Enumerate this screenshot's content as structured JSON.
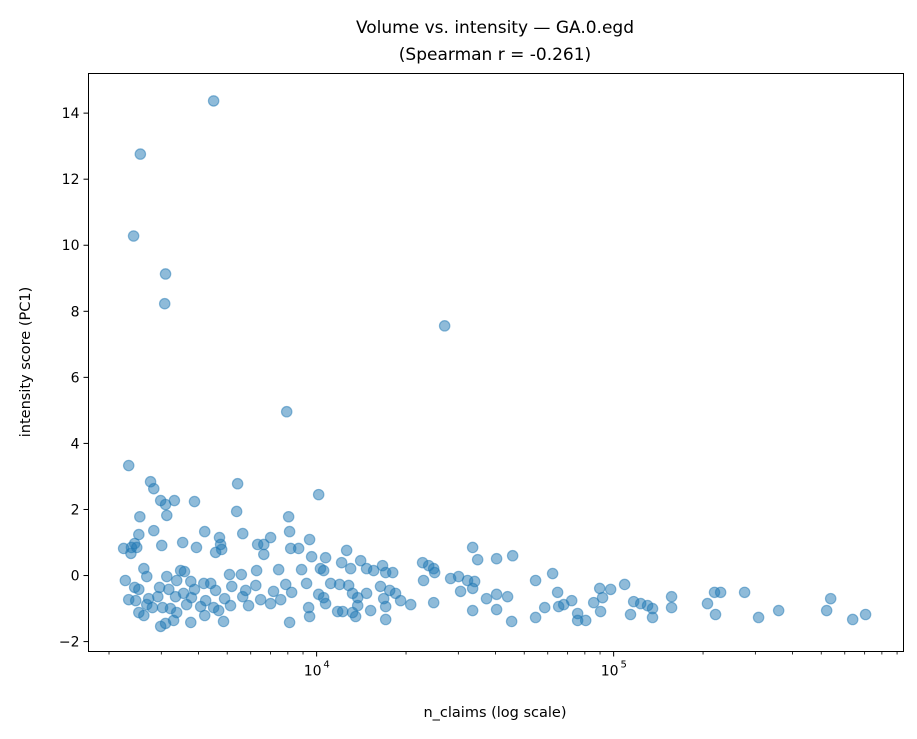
{
  "chart_data": {
    "type": "scatter",
    "title": "Volume vs. intensity — GA.0.egd",
    "subtitle": "(Spearman r = -0.261)",
    "xlabel": "n_claims (log scale)",
    "ylabel": "intensity score (PC1)",
    "xscale": "log",
    "xlim": [
      1706,
      946000
    ],
    "ylim": [
      -2.3,
      15.2
    ],
    "xticks": [
      {
        "value": 10000,
        "base": "10",
        "exp": "4"
      },
      {
        "value": 100000,
        "base": "10",
        "exp": "5"
      }
    ],
    "yticks": [
      -2,
      0,
      2,
      4,
      6,
      8,
      10,
      12,
      14
    ],
    "ytick_labels": [
      "−2",
      "0",
      "2",
      "4",
      "6",
      "8",
      "10",
      "12",
      "14"
    ],
    "grid": false,
    "color": "#1f77b4",
    "alpha": 0.5,
    "points": [
      [
        4500,
        14.37
      ],
      [
        2550,
        12.76
      ],
      [
        2420,
        10.28
      ],
      [
        3100,
        9.13
      ],
      [
        3080,
        8.23
      ],
      [
        26980,
        7.56
      ],
      [
        7930,
        4.96
      ],
      [
        2330,
        3.33
      ],
      [
        2760,
        2.84
      ],
      [
        2830,
        2.63
      ],
      [
        5420,
        2.78
      ],
      [
        10160,
        2.45
      ],
      [
        2985,
        2.27
      ],
      [
        3320,
        2.27
      ],
      [
        3880,
        2.24
      ],
      [
        3100,
        2.15
      ],
      [
        5380,
        1.94
      ],
      [
        2540,
        1.78
      ],
      [
        3130,
        1.82
      ],
      [
        8050,
        1.78
      ],
      [
        4200,
        1.33
      ],
      [
        2830,
        1.36
      ],
      [
        5640,
        1.27
      ],
      [
        8110,
        1.33
      ],
      [
        4710,
        1.15
      ],
      [
        7000,
        1.15
      ],
      [
        9470,
        1.09
      ],
      [
        2520,
        1.24
      ],
      [
        3540,
        1.0
      ],
      [
        2440,
        0.97
      ],
      [
        4750,
        0.94
      ],
      [
        6330,
        0.94
      ],
      [
        6640,
        0.94
      ],
      [
        3010,
        0.91
      ],
      [
        3940,
        0.85
      ],
      [
        4790,
        0.79
      ],
      [
        8700,
        0.82
      ],
      [
        8180,
        0.82
      ],
      [
        12620,
        0.76
      ],
      [
        33520,
        0.85
      ],
      [
        2240,
        0.82
      ],
      [
        2380,
        0.85
      ],
      [
        2480,
        0.85
      ],
      [
        2370,
        0.67
      ],
      [
        4570,
        0.7
      ],
      [
        6640,
        0.64
      ],
      [
        9620,
        0.57
      ],
      [
        10720,
        0.54
      ],
      [
        40360,
        0.51
      ],
      [
        45710,
        0.6
      ],
      [
        34850,
        0.48
      ],
      [
        22740,
        0.39
      ],
      [
        23840,
        0.3
      ],
      [
        12140,
        0.39
      ],
      [
        14070,
        0.45
      ],
      [
        24970,
        0.09
      ],
      [
        16670,
        0.3
      ],
      [
        24780,
        0.21
      ],
      [
        13020,
        0.21
      ],
      [
        14730,
        0.21
      ],
      [
        18040,
        0.09
      ],
      [
        17080,
        0.09
      ],
      [
        15560,
        0.15
      ],
      [
        10300,
        0.21
      ],
      [
        10560,
        0.15
      ],
      [
        8900,
        0.18
      ],
      [
        7450,
        0.18
      ],
      [
        6280,
        0.15
      ],
      [
        5580,
        0.03
      ],
      [
        5090,
        0.03
      ],
      [
        3485,
        0.15
      ],
      [
        3590,
        0.12
      ],
      [
        3130,
        -0.03
      ],
      [
        2620,
        0.21
      ],
      [
        30060,
        -0.03
      ],
      [
        28260,
        -0.09
      ],
      [
        32220,
        -0.15
      ],
      [
        34040,
        -0.18
      ],
      [
        54600,
        -0.15
      ],
      [
        62310,
        0.06
      ],
      [
        108900,
        -0.27
      ],
      [
        2270,
        -0.15
      ],
      [
        2680,
        -0.03
      ],
      [
        3380,
        -0.15
      ],
      [
        3770,
        -0.18
      ],
      [
        4170,
        -0.24
      ],
      [
        4400,
        -0.24
      ],
      [
        5180,
        -0.33
      ],
      [
        6240,
        -0.3
      ],
      [
        7870,
        -0.27
      ],
      [
        9250,
        -0.24
      ],
      [
        11150,
        -0.24
      ],
      [
        11950,
        -0.27
      ],
      [
        12820,
        -0.3
      ],
      [
        16410,
        -0.33
      ],
      [
        17620,
        -0.45
      ],
      [
        22910,
        -0.15
      ],
      [
        89770,
        -0.39
      ],
      [
        97700,
        -0.42
      ],
      [
        2440,
        -0.36
      ],
      [
        2520,
        -0.42
      ],
      [
        2960,
        -0.36
      ],
      [
        3180,
        -0.42
      ],
      [
        3565,
        -0.54
      ],
      [
        3880,
        -0.42
      ],
      [
        4570,
        -0.45
      ],
      [
        5770,
        -0.45
      ],
      [
        7160,
        -0.48
      ],
      [
        8240,
        -0.51
      ],
      [
        10160,
        -0.57
      ],
      [
        13210,
        -0.54
      ],
      [
        14730,
        -0.54
      ],
      [
        18440,
        -0.54
      ],
      [
        30530,
        -0.48
      ],
      [
        33520,
        -0.39
      ],
      [
        37330,
        -0.7
      ],
      [
        40360,
        -0.57
      ],
      [
        43950,
        -0.64
      ],
      [
        64770,
        -0.51
      ],
      [
        85680,
        -0.82
      ],
      [
        91780,
        -0.67
      ],
      [
        116800,
        -0.79
      ],
      [
        156700,
        -0.64
      ],
      [
        218600,
        -0.51
      ],
      [
        229200,
        -0.51
      ],
      [
        276000,
        -0.51
      ],
      [
        537900,
        -0.7
      ],
      [
        2330,
        -0.73
      ],
      [
        2460,
        -0.76
      ],
      [
        2720,
        -0.7
      ],
      [
        2920,
        -0.64
      ],
      [
        3350,
        -0.64
      ],
      [
        3790,
        -0.67
      ],
      [
        4230,
        -0.76
      ],
      [
        4900,
        -0.7
      ],
      [
        5640,
        -0.64
      ],
      [
        6480,
        -0.73
      ],
      [
        7570,
        -0.73
      ],
      [
        10560,
        -0.67
      ],
      [
        13750,
        -0.67
      ],
      [
        16820,
        -0.7
      ],
      [
        20740,
        -0.88
      ],
      [
        19180,
        -0.76
      ],
      [
        72240,
        -0.76
      ],
      [
        123300,
        -0.85
      ],
      [
        130100,
        -0.91
      ],
      [
        207000,
        -0.85
      ],
      [
        2680,
        -0.88
      ],
      [
        2800,
        -0.97
      ],
      [
        3030,
        -0.97
      ],
      [
        3650,
        -0.88
      ],
      [
        4070,
        -0.94
      ],
      [
        4500,
        -0.97
      ],
      [
        5130,
        -0.91
      ],
      [
        5900,
        -0.91
      ],
      [
        7000,
        -0.85
      ],
      [
        10720,
        -0.85
      ],
      [
        13750,
        -0.91
      ],
      [
        17080,
        -0.94
      ],
      [
        24780,
        -0.82
      ],
      [
        65300,
        -0.94
      ],
      [
        67900,
        -0.88
      ],
      [
        58610,
        -0.97
      ],
      [
        3220,
        -1.0
      ],
      [
        4680,
        -1.06
      ],
      [
        9400,
        -0.97
      ],
      [
        11770,
        -1.09
      ],
      [
        12240,
        -1.09
      ],
      [
        13210,
        -1.12
      ],
      [
        15200,
        -1.06
      ],
      [
        33520,
        -1.06
      ],
      [
        40360,
        -1.03
      ],
      [
        90370,
        -1.09
      ],
      [
        135200,
        -1.0
      ],
      [
        156700,
        -0.97
      ],
      [
        359400,
        -1.06
      ],
      [
        521400,
        -1.06
      ],
      [
        2520,
        -1.12
      ],
      [
        3380,
        -1.12
      ],
      [
        13530,
        -1.24
      ],
      [
        17080,
        -1.33
      ],
      [
        2620,
        -1.21
      ],
      [
        4200,
        -1.21
      ],
      [
        9470,
        -1.24
      ],
      [
        54600,
        -1.27
      ],
      [
        75650,
        -1.15
      ],
      [
        114000,
        -1.18
      ],
      [
        220300,
        -1.18
      ],
      [
        307600,
        -1.27
      ],
      [
        705000,
        -1.18
      ],
      [
        638000,
        -1.33
      ],
      [
        3300,
        -1.36
      ],
      [
        2985,
        -1.54
      ],
      [
        3100,
        -1.45
      ],
      [
        3770,
        -1.42
      ],
      [
        4860,
        -1.39
      ],
      [
        8110,
        -1.42
      ],
      [
        45350,
        -1.39
      ],
      [
        75650,
        -1.36
      ],
      [
        80530,
        -1.36
      ],
      [
        135200,
        -1.27
      ]
    ]
  }
}
